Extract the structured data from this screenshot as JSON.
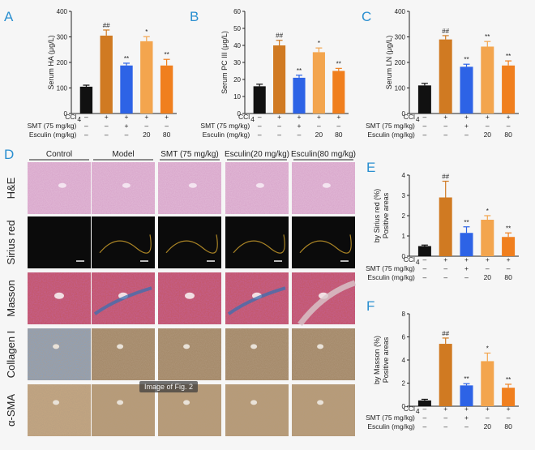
{
  "panel_labels": [
    "A",
    "B",
    "C",
    "D",
    "E",
    "F"
  ],
  "conditions": {
    "ccl4_label": "CCl",
    "ccl4_sub": "4",
    "smt_label": "SMT (75 mg/kg)",
    "esc_label": "Esculin (mg/kg)",
    "ccl4_marks": [
      "–",
      "+",
      "+",
      "+",
      "+"
    ],
    "smt_marks": [
      "–",
      "–",
      "+",
      "–",
      "–"
    ],
    "esc_marks": [
      "–",
      "–",
      "–",
      "20",
      "80"
    ]
  },
  "histology": {
    "columns": [
      "Control",
      "Model",
      "SMT (75 mg/kg)",
      "Esculin(20 mg/kg)",
      "Esculin(80 mg/kg)"
    ],
    "rows": [
      "H&E",
      "Sirius red",
      "Masson",
      "Collagen I",
      "α-SMA"
    ]
  },
  "caption_tag": "Image of Fig. 2",
  "colors": {
    "control": "#111111",
    "model": "#d07a22",
    "smt": "#2d63e6",
    "esc20": "#f3a54e",
    "esc80": "#f07f1e",
    "label": "#2a8fd0"
  },
  "chart_data": [
    {
      "type": "bar",
      "panel": "A",
      "ylabel": "Serum HA (μg/L)",
      "ylim": [
        0,
        400
      ],
      "yticks": [
        0,
        100,
        200,
        300,
        400
      ],
      "values": [
        105,
        305,
        188,
        283,
        188
      ],
      "errors": [
        6,
        22,
        9,
        18,
        24
      ],
      "sig": [
        "",
        "##",
        "**",
        "*",
        "**"
      ]
    },
    {
      "type": "bar",
      "panel": "B",
      "ylabel": "Serum PC III (μg/L)",
      "ylim": [
        0,
        60
      ],
      "yticks": [
        0,
        10,
        20,
        30,
        40,
        50,
        60
      ],
      "values": [
        16,
        40,
        21,
        36,
        25
      ],
      "errors": [
        1.2,
        3,
        1.5,
        2.5,
        1.5
      ],
      "sig": [
        "",
        "##",
        "**",
        "*",
        "**"
      ]
    },
    {
      "type": "bar",
      "panel": "C",
      "ylabel": "Serum LN (μg/L)",
      "ylim": [
        0,
        400
      ],
      "yticks": [
        0,
        100,
        200,
        300,
        400
      ],
      "values": [
        110,
        290,
        183,
        262,
        188
      ],
      "errors": [
        8,
        15,
        10,
        20,
        18
      ],
      "sig": [
        "",
        "##",
        "**",
        "**",
        "**"
      ]
    },
    {
      "type": "bar",
      "panel": "E",
      "ylabel": "Positive areas by Sirius red  (%)",
      "ylim": [
        0,
        4
      ],
      "yticks": [
        0,
        1,
        2,
        3,
        4
      ],
      "values": [
        0.5,
        2.9,
        1.15,
        1.8,
        0.95
      ],
      "errors": [
        0.05,
        0.8,
        0.3,
        0.2,
        0.2
      ],
      "sig": [
        "",
        "##",
        "**",
        "*",
        "**"
      ]
    },
    {
      "type": "bar",
      "panel": "F",
      "ylabel": "Positive areas by Masson (%)",
      "ylim": [
        0,
        8
      ],
      "yticks": [
        0,
        2,
        4,
        6,
        8
      ],
      "values": [
        0.5,
        5.4,
        1.8,
        3.9,
        1.6
      ],
      "errors": [
        0.1,
        0.5,
        0.15,
        0.7,
        0.3
      ],
      "sig": [
        "",
        "##",
        "**",
        "*",
        "**"
      ]
    }
  ]
}
